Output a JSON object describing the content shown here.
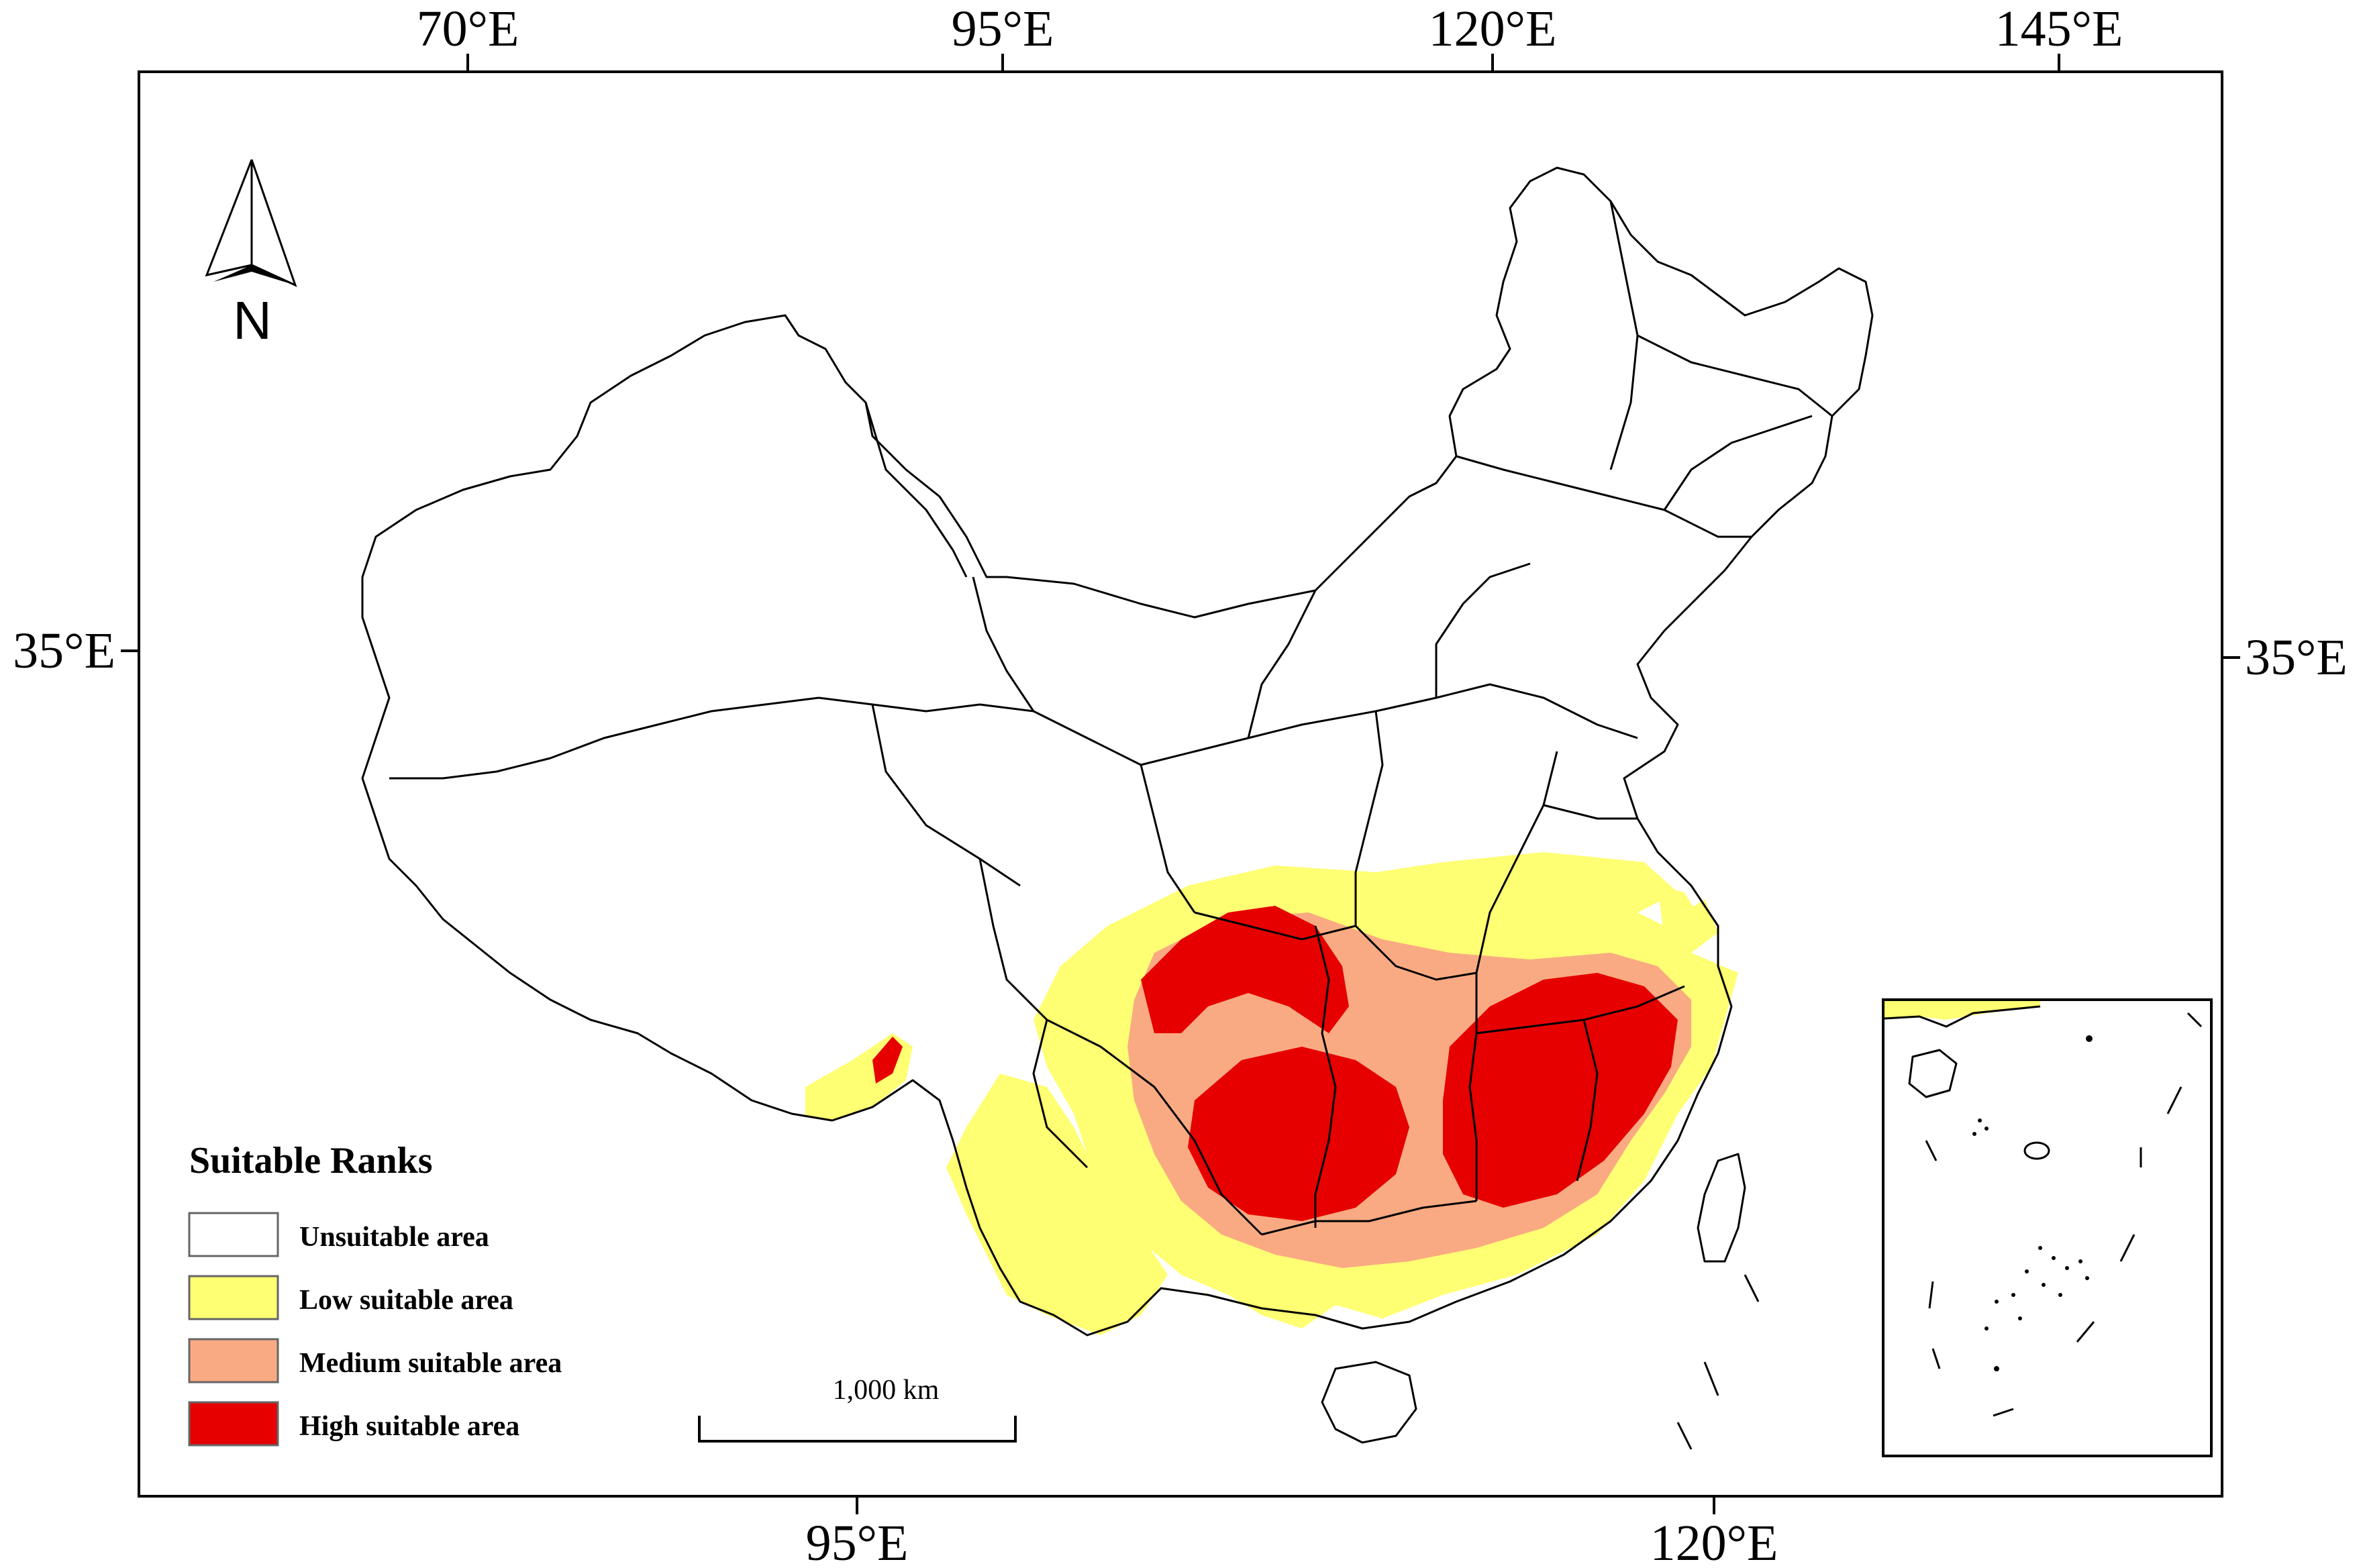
{
  "map": {
    "top_ticks": [
      "70°E",
      "95°E",
      "120°E",
      "145°E"
    ],
    "bottom_ticks": [
      "95°E",
      "120°E"
    ],
    "left_ticks": [
      "35°E"
    ],
    "right_ticks": [
      "35°E"
    ],
    "north_arrow": {
      "label": "N",
      "icon": "north-arrow-icon"
    },
    "scale_bar": {
      "label": "1,000 km"
    },
    "legend": {
      "title": "Suitable Ranks",
      "items": [
        {
          "label": "Unsuitable area",
          "color": "#ffffff"
        },
        {
          "label": "Low suitable area",
          "color": "#ffff73"
        },
        {
          "label": "Medium suitable area",
          "color": "#faaa82"
        },
        {
          "label": "High suitable area",
          "color": "#e60000"
        }
      ]
    }
  }
}
